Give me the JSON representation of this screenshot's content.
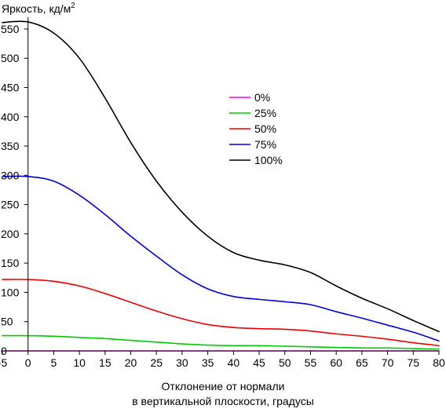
{
  "chart_data": {
    "type": "line",
    "ylabel": "Яркость, кд/м",
    "ylabel_sup": "2",
    "xlabel_line1": "Отклонение от нормали",
    "xlabel_line2": "в вертикальной плоскости, градусы",
    "xlim": [
      -5,
      80
    ],
    "ylim": [
      0,
      570
    ],
    "xticks": [
      -5,
      0,
      5,
      10,
      15,
      20,
      25,
      30,
      35,
      40,
      45,
      50,
      55,
      60,
      65,
      70,
      75,
      80
    ],
    "yticks": [
      0,
      50,
      100,
      150,
      200,
      250,
      300,
      350,
      400,
      450,
      500,
      550
    ],
    "grid": false,
    "legend_position": "center-right",
    "series": [
      {
        "name": "0%",
        "color": "#ff00ff",
        "x": [
          -5,
          0,
          10,
          20,
          30,
          40,
          50,
          60,
          70,
          80
        ],
        "y": [
          0,
          0,
          0,
          0,
          0,
          0,
          0,
          0,
          0,
          0
        ]
      },
      {
        "name": "25%",
        "color": "#00cc00",
        "x": [
          -5,
          0,
          5,
          10,
          15,
          20,
          25,
          30,
          35,
          40,
          45,
          50,
          55,
          60,
          65,
          70,
          75,
          80
        ],
        "y": [
          26,
          26,
          25,
          23,
          21,
          18,
          15,
          12,
          10,
          9,
          9,
          8,
          7,
          6,
          5,
          5,
          4,
          3
        ]
      },
      {
        "name": "50%",
        "color": "#ee0000",
        "x": [
          -5,
          0,
          5,
          10,
          15,
          20,
          25,
          30,
          35,
          40,
          45,
          50,
          55,
          60,
          65,
          70,
          75,
          80
        ],
        "y": [
          122,
          122,
          119,
          111,
          98,
          83,
          68,
          55,
          45,
          40,
          38,
          37,
          34,
          29,
          25,
          20,
          14,
          9
        ]
      },
      {
        "name": "75%",
        "color": "#0000dd",
        "x": [
          -5,
          0,
          5,
          10,
          15,
          20,
          25,
          30,
          35,
          40,
          45,
          50,
          55,
          60,
          65,
          70,
          75,
          80
        ],
        "y": [
          298,
          298,
          290,
          266,
          233,
          196,
          162,
          130,
          106,
          93,
          88,
          84,
          79,
          67,
          56,
          44,
          32,
          17
        ]
      },
      {
        "name": "100%",
        "color": "#000000",
        "x": [
          -5,
          0,
          5,
          10,
          15,
          20,
          25,
          30,
          35,
          40,
          45,
          50,
          55,
          60,
          65,
          70,
          75,
          80
        ],
        "y": [
          561,
          562,
          543,
          500,
          432,
          356,
          290,
          237,
          196,
          168,
          155,
          147,
          134,
          111,
          90,
          72,
          52,
          33
        ]
      }
    ]
  }
}
